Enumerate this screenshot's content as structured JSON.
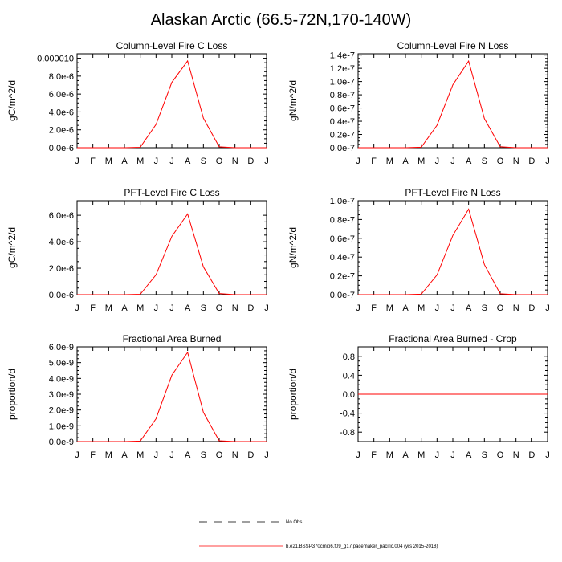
{
  "figure": {
    "title": "Alaskan Arctic (66.5-72N,170-140W)"
  },
  "legend": {
    "entries": [
      {
        "label": "No Obs",
        "style": "dashed",
        "color": "#000000"
      },
      {
        "label": "b.e21.BSSP370cmip6.f09_g17.pacemaker_pacific.004 (yrs 2015-2018)",
        "style": "solid",
        "color": "#ff0000"
      }
    ]
  },
  "colors": {
    "series": "#ff0000",
    "axis": "#000000"
  },
  "chart_data": [
    {
      "type": "line",
      "title": "Column-Level Fire C Loss",
      "ylabel": "gC/m^2/d",
      "xlabel": "",
      "categories": [
        "J",
        "F",
        "M",
        "A",
        "M",
        "J",
        "J",
        "A",
        "S",
        "O",
        "N",
        "D",
        "J"
      ],
      "ylim": [
        0,
        1.05e-05
      ],
      "yticks": [
        0,
        2e-06,
        4e-06,
        6e-06,
        8e-06,
        1e-05
      ],
      "yticklabels": [
        "0.0e-6",
        "2.0e-6",
        "4.0e-6",
        "6.0e-6",
        "8.0e-6",
        "0.000010"
      ],
      "series": [
        {
          "name": "b.e21.BSSP370cmip6.f09_g17.pacemaker_pacific.004 (yrs 2015-2018)",
          "values": [
            0,
            0,
            0,
            0,
            5e-08,
            2.6e-06,
            7.3e-06,
            9.7e-06,
            3.3e-06,
            1e-07,
            0,
            0,
            0
          ]
        }
      ]
    },
    {
      "type": "line",
      "title": "Column-Level Fire N Loss",
      "ylabel": "gN/m^2/d",
      "xlabel": "",
      "categories": [
        "J",
        "F",
        "M",
        "A",
        "M",
        "J",
        "J",
        "A",
        "S",
        "O",
        "N",
        "D",
        "J"
      ],
      "ylim": [
        0,
        1.42e-07
      ],
      "yticks": [
        0,
        2e-08,
        4e-08,
        6e-08,
        8e-08,
        1e-07,
        1.2e-07,
        1.4e-07
      ],
      "yticklabels": [
        "0.0e-7",
        "0.2e-7",
        "0.4e-7",
        "0.6e-7",
        "0.8e-7",
        "1.0e-7",
        "1.2e-7",
        "1.4e-7"
      ],
      "series": [
        {
          "name": "b.e21.BSSP370cmip6.f09_g17.pacemaker_pacific.004 (yrs 2015-2018)",
          "values": [
            0,
            0,
            0,
            0,
            7e-10,
            3.4e-08,
            9.5e-08,
            1.31e-07,
            4.4e-08,
            1.5e-09,
            0,
            0,
            0
          ]
        }
      ]
    },
    {
      "type": "line",
      "title": "PFT-Level Fire C Loss",
      "ylabel": "gC/m^2/d",
      "xlabel": "",
      "categories": [
        "J",
        "F",
        "M",
        "A",
        "M",
        "J",
        "J",
        "A",
        "S",
        "O",
        "N",
        "D",
        "J"
      ],
      "ylim": [
        0,
        7.1e-06
      ],
      "yticks": [
        0,
        2e-06,
        4e-06,
        6e-06
      ],
      "yticklabels": [
        "0.0e-6",
        "2.0e-6",
        "4.0e-6",
        "6.0e-6"
      ],
      "series": [
        {
          "name": "b.e21.BSSP370cmip6.f09_g17.pacemaker_pacific.004 (yrs 2015-2018)",
          "values": [
            0,
            0,
            0,
            0,
            3e-08,
            1.5e-06,
            4.4e-06,
            6.1e-06,
            2.1e-06,
            8e-08,
            0,
            0,
            0
          ]
        }
      ]
    },
    {
      "type": "line",
      "title": "PFT-Level Fire N Loss",
      "ylabel": "gN/m^2/d",
      "xlabel": "",
      "categories": [
        "J",
        "F",
        "M",
        "A",
        "M",
        "J",
        "J",
        "A",
        "S",
        "O",
        "N",
        "D",
        "J"
      ],
      "ylim": [
        0,
        1e-07
      ],
      "yticks": [
        0,
        2e-08,
        4e-08,
        6e-08,
        8e-08,
        1e-07
      ],
      "yticklabels": [
        "0.0e-7",
        "0.2e-7",
        "0.4e-7",
        "0.6e-7",
        "0.8e-7",
        "1.0e-7"
      ],
      "series": [
        {
          "name": "b.e21.BSSP370cmip6.f09_g17.pacemaker_pacific.004 (yrs 2015-2018)",
          "values": [
            0,
            0,
            0,
            0,
            5e-10,
            2.1e-08,
            6.3e-08,
            9.1e-08,
            3.2e-08,
            1e-09,
            0,
            0,
            0
          ]
        }
      ]
    },
    {
      "type": "line",
      "title": "Fractional Area Burned",
      "ylabel": "proportion/d",
      "xlabel": "",
      "categories": [
        "J",
        "F",
        "M",
        "A",
        "M",
        "J",
        "J",
        "A",
        "S",
        "O",
        "N",
        "D",
        "J"
      ],
      "ylim": [
        0,
        6e-09
      ],
      "yticks": [
        0,
        1e-09,
        2e-09,
        3e-09,
        4e-09,
        5e-09,
        6e-09
      ],
      "yticklabels": [
        "0.0e-9",
        "1.0e-9",
        "2.0e-9",
        "3.0e-9",
        "4.0e-9",
        "5.0e-9",
        "6.0e-9"
      ],
      "series": [
        {
          "name": "b.e21.BSSP370cmip6.f09_g17.pacemaker_pacific.004 (yrs 2015-2018)",
          "values": [
            0,
            0,
            0,
            0,
            3e-11,
            1.45e-09,
            4.2e-09,
            5.65e-09,
            1.85e-09,
            5e-11,
            0,
            0,
            0
          ]
        }
      ]
    },
    {
      "type": "line",
      "title": "Fractional Area Burned - Crop",
      "ylabel": "proportion/d",
      "xlabel": "",
      "categories": [
        "J",
        "F",
        "M",
        "A",
        "M",
        "J",
        "J",
        "A",
        "S",
        "O",
        "N",
        "D",
        "J"
      ],
      "ylim": [
        -1,
        1
      ],
      "yticks": [
        -0.8,
        -0.4,
        0,
        0.4,
        0.8
      ],
      "yticklabels": [
        "-0.8",
        "-0.4",
        "0.0",
        "0.4",
        "0.8"
      ],
      "series": [
        {
          "name": "b.e21.BSSP370cmip6.f09_g17.pacemaker_pacific.004 (yrs 2015-2018)",
          "values": [
            0,
            0,
            0,
            0,
            0,
            0,
            0,
            0,
            0,
            0,
            0,
            0,
            0
          ]
        }
      ]
    }
  ]
}
